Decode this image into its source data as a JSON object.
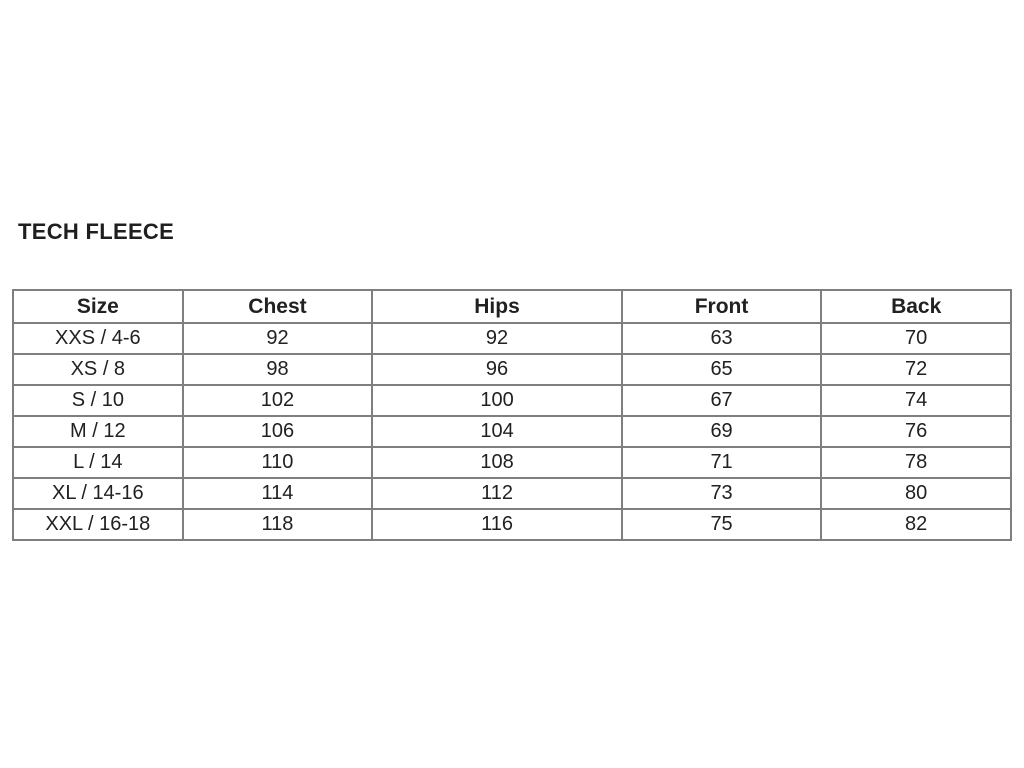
{
  "title": "TECH FLEECE",
  "colors": {
    "text": "#212121",
    "table_border": "#7f7f7f",
    "background": "#ffffff"
  },
  "table": {
    "headers": [
      "Size",
      "Chest",
      "Hips",
      "Front",
      "Back"
    ],
    "rows": [
      [
        "XXS / 4-6",
        "92",
        "92",
        "63",
        "70"
      ],
      [
        "XS / 8",
        "98",
        "96",
        "65",
        "72"
      ],
      [
        "S / 10",
        "102",
        "100",
        "67",
        "74"
      ],
      [
        "M / 12",
        "106",
        "104",
        "69",
        "76"
      ],
      [
        "L / 14",
        "110",
        "108",
        "71",
        "78"
      ],
      [
        "XL / 14-16",
        "114",
        "112",
        "73",
        "80"
      ],
      [
        "XXL / 16-18",
        "118",
        "116",
        "75",
        "82"
      ]
    ]
  }
}
